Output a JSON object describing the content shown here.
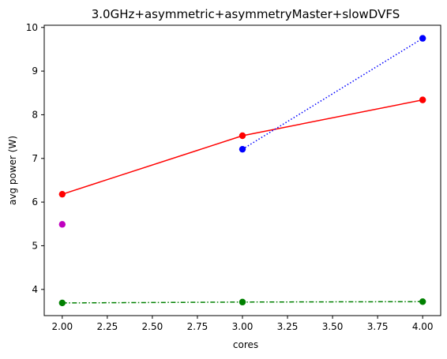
{
  "chart_data": {
    "type": "line",
    "title": "3.0GHz+asymmetric+asymmetryMaster+slowDVFS",
    "xlabel": "cores",
    "ylabel": "avg power (W)",
    "xlim": [
      1.9,
      4.1
    ],
    "ylim": [
      3.4,
      10.05
    ],
    "xticks": [
      "2.00",
      "2.25",
      "2.50",
      "2.75",
      "3.00",
      "3.25",
      "3.50",
      "3.75",
      "4.00"
    ],
    "yticks": [
      "4",
      "5",
      "6",
      "7",
      "8",
      "9",
      "10"
    ],
    "grid": false,
    "series": [
      {
        "color": "#ff0000",
        "linestyle": "solid",
        "x": [
          2,
          3,
          4
        ],
        "y": [
          6.18,
          7.52,
          8.34
        ]
      },
      {
        "color": "#0000ff",
        "linestyle": "dotted",
        "x": [
          3,
          4
        ],
        "y": [
          7.21,
          9.75
        ]
      },
      {
        "color": "#008000",
        "linestyle": "dashdot",
        "x": [
          2,
          3,
          4
        ],
        "y": [
          3.69,
          3.71,
          3.72
        ]
      },
      {
        "color": "#bf00bf",
        "linestyle": "none",
        "x": [
          2
        ],
        "y": [
          5.49
        ]
      }
    ]
  }
}
